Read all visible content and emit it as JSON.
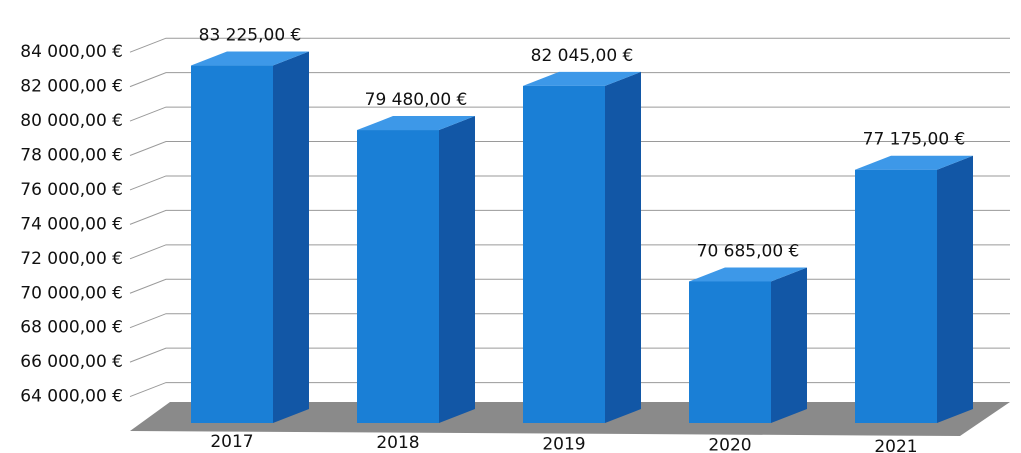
{
  "chart_data": {
    "type": "bar",
    "categories": [
      "2017",
      "2018",
      "2019",
      "2020",
      "2021"
    ],
    "values": [
      83225,
      79480,
      82045,
      70685,
      77175
    ],
    "value_labels": [
      "83 225,00 €",
      "79 480,00 €",
      "82 045,00 €",
      "70 685,00 €",
      "77 175,00 €"
    ],
    "color": "#1a7fd6",
    "ylim": [
      62000,
      85000
    ],
    "yticks": [
      {
        "value": 64000,
        "label": "64 000,00 €"
      },
      {
        "value": 66000,
        "label": "66 000,00 €"
      },
      {
        "value": 68000,
        "label": "68 000,00 €"
      },
      {
        "value": 70000,
        "label": "70 000,00 €"
      },
      {
        "value": 72000,
        "label": "72 000,00 €"
      },
      {
        "value": 74000,
        "label": "74 000,00 €"
      },
      {
        "value": 76000,
        "label": "76 000,00 €"
      },
      {
        "value": 78000,
        "label": "78 000,00 €"
      },
      {
        "value": 80000,
        "label": "80 000,00 €"
      },
      {
        "value": 82000,
        "label": "82 000,00 €"
      },
      {
        "value": 84000,
        "label": "84 000,00 €"
      }
    ],
    "grid": true
  }
}
